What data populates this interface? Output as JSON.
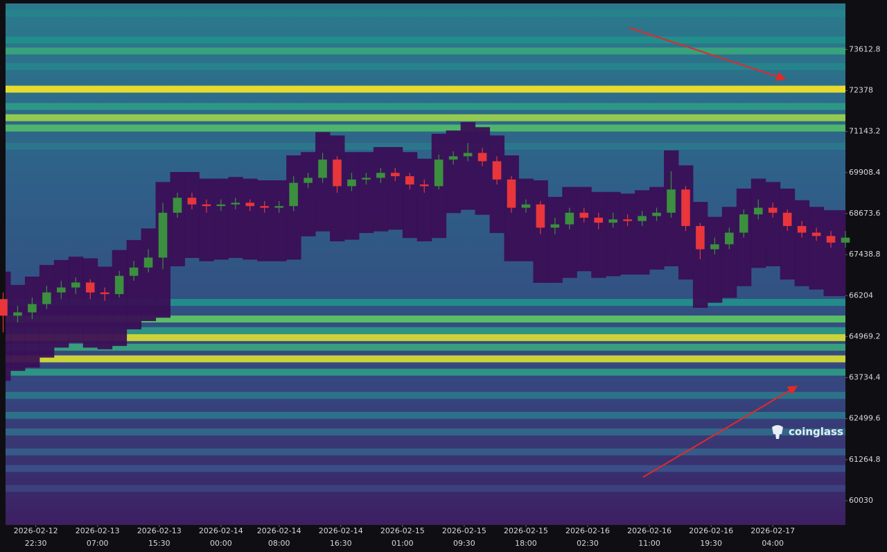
{
  "chart_data": {
    "type": "candlestick",
    "watermark": "coinglass",
    "ylim": [
      59300,
      75000
    ],
    "yticks": [
      60030,
      61264.8,
      62499.6,
      63734.4,
      64969.2,
      66204,
      67438.8,
      68673.6,
      69908.4,
      71143.2,
      72378,
      73612.8
    ],
    "xlim": [
      "2026-02-12 18:20",
      "2026-02-17 14:00"
    ],
    "xticks": [
      "2026-02-12 22:30",
      "2026-02-13 07:00",
      "2026-02-13 15:30",
      "2026-02-14 00:00",
      "2026-02-14 08:00",
      "2026-02-14 16:30",
      "2026-02-15 01:00",
      "2026-02-15 09:30",
      "2026-02-15 18:00",
      "2026-02-16 02:30",
      "2026-02-16 11:00",
      "2026-02-16 19:30",
      "2026-02-17 04:00"
    ],
    "up_color": "#3b8f3e",
    "down_color": "#e8363b",
    "heatmap": {
      "levels": [
        74700,
        73900,
        73570,
        73100,
        72420,
        71900,
        71560,
        71250,
        70700,
        66000,
        65500,
        65150,
        64940,
        64650,
        64300,
        63900,
        63200,
        62600,
        62100,
        61500,
        61000,
        60400
      ],
      "heat": [
        0.45,
        0.5,
        0.6,
        0.45,
        1.0,
        0.55,
        0.85,
        0.7,
        0.4,
        0.5,
        0.75,
        0.55,
        0.95,
        0.6,
        0.95,
        0.55,
        0.4,
        0.4,
        0.35,
        0.3,
        0.25,
        0.2
      ]
    },
    "x": [
      "2026-02-12 18:00",
      "2026-02-12 20:00",
      "2026-02-12 22:00",
      "2026-02-13 00:00",
      "2026-02-13 02:00",
      "2026-02-13 04:00",
      "2026-02-13 06:00",
      "2026-02-13 08:00",
      "2026-02-13 10:00",
      "2026-02-13 12:00",
      "2026-02-13 14:00",
      "2026-02-13 16:00",
      "2026-02-13 18:00",
      "2026-02-13 20:00",
      "2026-02-13 22:00",
      "2026-02-14 00:00",
      "2026-02-14 02:00",
      "2026-02-14 04:00",
      "2026-02-14 06:00",
      "2026-02-14 08:00",
      "2026-02-14 10:00",
      "2026-02-14 12:00",
      "2026-02-14 14:00",
      "2026-02-14 16:00",
      "2026-02-14 18:00",
      "2026-02-14 20:00",
      "2026-02-14 22:00",
      "2026-02-15 00:00",
      "2026-02-15 02:00",
      "2026-02-15 04:00",
      "2026-02-15 06:00",
      "2026-02-15 08:00",
      "2026-02-15 10:00",
      "2026-02-15 12:00",
      "2026-02-15 14:00",
      "2026-02-15 16:00",
      "2026-02-15 18:00",
      "2026-02-15 20:00",
      "2026-02-15 22:00",
      "2026-02-16 00:00",
      "2026-02-16 02:00",
      "2026-02-16 04:00",
      "2026-02-16 06:00",
      "2026-02-16 08:00",
      "2026-02-16 10:00",
      "2026-02-16 12:00",
      "2026-02-16 14:00",
      "2026-02-16 16:00",
      "2026-02-16 18:00",
      "2026-02-16 20:00",
      "2026-02-16 22:00",
      "2026-02-17 00:00",
      "2026-02-17 02:00",
      "2026-02-17 04:00",
      "2026-02-17 06:00",
      "2026-02-17 08:00",
      "2026-02-17 10:00",
      "2026-02-17 12:00",
      "2026-02-17 14:00"
    ],
    "open": [
      66100,
      65600,
      65700,
      65950,
      66300,
      66450,
      66600,
      66300,
      66250,
      66800,
      67050,
      67350,
      68700,
      69150,
      68950,
      68900,
      68950,
      69000,
      68900,
      68850,
      68900,
      69600,
      69750,
      70300,
      69500,
      69700,
      69750,
      69900,
      69800,
      69550,
      69500,
      70300,
      70400,
      70500,
      70250,
      69700,
      68850,
      68950,
      68250,
      68350,
      68700,
      68550,
      68400,
      68500,
      68450,
      68600,
      68700,
      69400,
      68300,
      67600,
      67750,
      68100,
      68650,
      68850,
      68700,
      68300,
      68100,
      68000,
      67800
    ],
    "high": [
      66300,
      65900,
      66150,
      66500,
      66650,
      66750,
      66700,
      66450,
      66950,
      67250,
      67600,
      69000,
      69300,
      69300,
      69100,
      69100,
      69150,
      69100,
      69050,
      69050,
      69800,
      69900,
      70500,
      70400,
      69900,
      69900,
      70050,
      70050,
      69900,
      69700,
      70450,
      70550,
      70800,
      70650,
      70400,
      69800,
      69100,
      69050,
      68550,
      68850,
      68850,
      68700,
      68700,
      68650,
      68750,
      68850,
      69950,
      69500,
      68400,
      67950,
      68250,
      68800,
      69100,
      69000,
      68800,
      68450,
      68250,
      68150,
      68150
    ],
    "low": [
      65100,
      65400,
      65500,
      65800,
      66100,
      66250,
      66100,
      66050,
      66150,
      66650,
      66900,
      67000,
      68550,
      68800,
      68700,
      68750,
      68800,
      68750,
      68700,
      68700,
      68750,
      69450,
      69600,
      69300,
      69350,
      69550,
      69600,
      69650,
      69400,
      69300,
      69400,
      70150,
      70250,
      70100,
      69550,
      68700,
      68700,
      68050,
      68050,
      68200,
      68400,
      68200,
      68250,
      68300,
      68300,
      68450,
      68550,
      68150,
      67300,
      67450,
      67600,
      67950,
      68500,
      68550,
      68150,
      67950,
      67850,
      67650,
      67650
    ],
    "close": [
      65600,
      65700,
      65950,
      66300,
      66450,
      66600,
      66300,
      66250,
      66800,
      67050,
      67350,
      68700,
      69150,
      68950,
      68900,
      68950,
      69000,
      68900,
      68850,
      68900,
      69600,
      69750,
      70300,
      69500,
      69700,
      69750,
      69900,
      69800,
      69550,
      69500,
      70300,
      70400,
      70500,
      70250,
      69700,
      68850,
      68950,
      68250,
      68350,
      68700,
      68550,
      68400,
      68500,
      68450,
      68600,
      68700,
      69400,
      68300,
      67600,
      67750,
      68100,
      68650,
      68850,
      68700,
      68300,
      68100,
      68000,
      67800,
      67950
    ]
  }
}
